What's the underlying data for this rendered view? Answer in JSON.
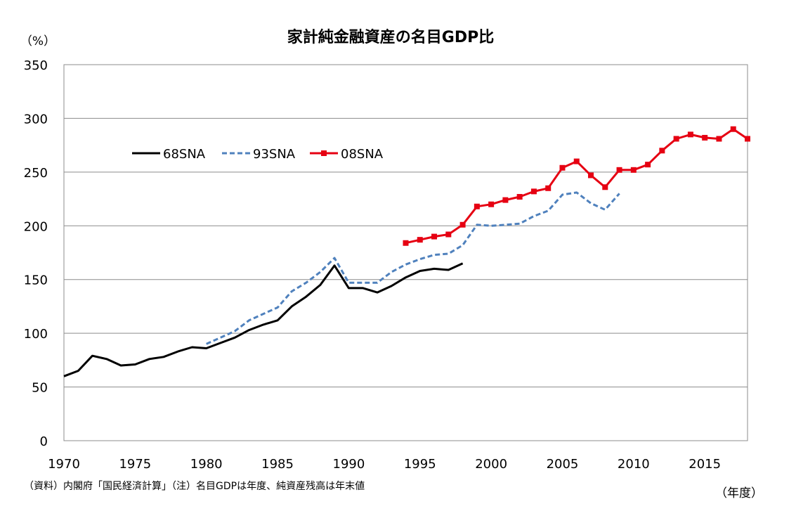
{
  "chart_data": {
    "type": "line",
    "title": "家計純金融資産の名目GDP比",
    "ylabel": "（%）",
    "xlabel": "（年度）",
    "note": "（資料）内閣府「国民経済計算」（注）名目GDPは年度、純資産残高は年末値",
    "xlim": [
      1970,
      2018
    ],
    "ylim": [
      0,
      350
    ],
    "x_ticks": [
      "1970",
      "1975",
      "1980",
      "1985",
      "1990",
      "1995",
      "2000",
      "2005",
      "2010",
      "2015"
    ],
    "y_ticks": [
      "0",
      "50",
      "100",
      "150",
      "200",
      "250",
      "300",
      "350"
    ],
    "grid": true,
    "legend_position": "top-left",
    "series": [
      {
        "name": "68SNA",
        "color": "#000000",
        "style": "solid",
        "x": [
          1970,
          1971,
          1972,
          1973,
          1974,
          1975,
          1976,
          1977,
          1978,
          1979,
          1980,
          1981,
          1982,
          1983,
          1984,
          1985,
          1986,
          1987,
          1988,
          1989,
          1990,
          1991,
          1992,
          1993,
          1994,
          1995,
          1996,
          1997,
          1998
        ],
        "y": [
          60,
          65,
          79,
          76,
          70,
          71,
          76,
          78,
          83,
          87,
          86,
          91,
          96,
          103,
          108,
          112,
          125,
          134,
          145,
          163,
          142,
          142,
          138,
          144,
          152,
          158,
          160,
          159,
          165
        ]
      },
      {
        "name": "93SNA",
        "color": "#4f81bd",
        "style": "dashed",
        "x": [
          1980,
          1981,
          1982,
          1983,
          1984,
          1985,
          1986,
          1987,
          1988,
          1989,
          1990,
          1991,
          1992,
          1993,
          1994,
          1995,
          1996,
          1997,
          1998,
          1999,
          2000,
          2001,
          2002,
          2003,
          2004,
          2005,
          2006,
          2007,
          2008,
          2009
        ],
        "y": [
          90,
          96,
          102,
          112,
          118,
          124,
          139,
          147,
          157,
          170,
          147,
          147,
          147,
          157,
          164,
          169,
          173,
          174,
          182,
          201,
          200,
          201,
          202,
          209,
          214,
          229,
          231,
          221,
          215,
          230
        ]
      },
      {
        "name": "08SNA",
        "color": "#e60012",
        "style": "solid-square",
        "x": [
          1994,
          1995,
          1996,
          1997,
          1998,
          1999,
          2000,
          2001,
          2002,
          2003,
          2004,
          2005,
          2006,
          2007,
          2008,
          2009,
          2010,
          2011,
          2012,
          2013,
          2014,
          2015,
          2016,
          2017,
          2018
        ],
        "y": [
          184,
          187,
          190,
          192,
          201,
          218,
          220,
          224,
          227,
          232,
          235,
          254,
          260,
          247,
          236,
          252,
          252,
          257,
          270,
          281,
          285,
          282,
          281,
          290,
          281
        ]
      }
    ]
  }
}
